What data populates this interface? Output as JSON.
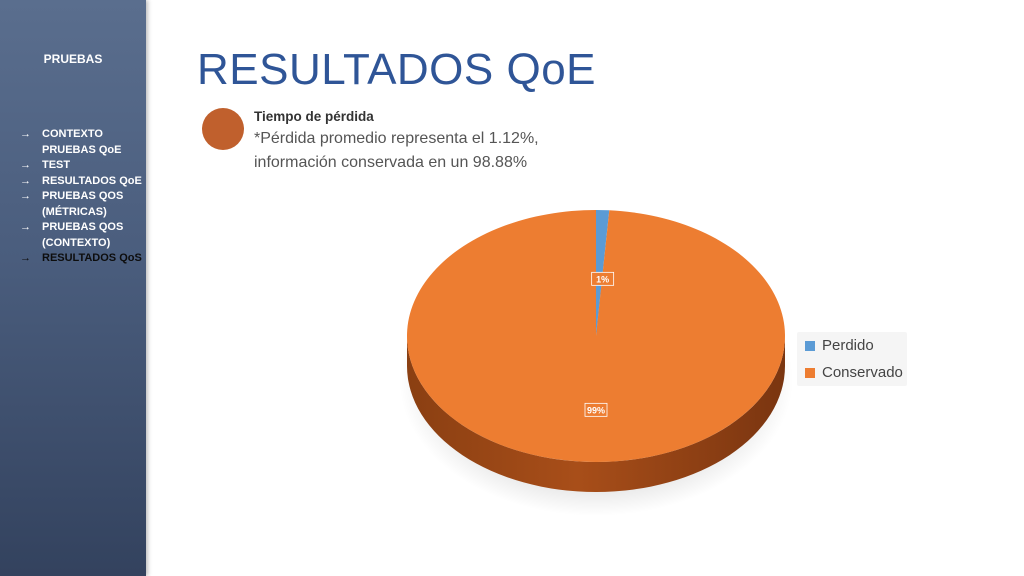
{
  "sidebar": {
    "heading": "PRUEBAS",
    "items": [
      {
        "label": "CONTEXTO PRUEBAS QoE",
        "active": false
      },
      {
        "label": "TEST",
        "active": false
      },
      {
        "label": "RESULTADOS QoE",
        "active": false
      },
      {
        "label": "PRUEBAS QOS (MÉTRICAS)",
        "active": false
      },
      {
        "label": "PRUEBAS QOS (CONTEXTO)",
        "active": false
      },
      {
        "label": "RESULTADOS QoS",
        "active": true
      }
    ],
    "arrow": "→"
  },
  "slide": {
    "title": "RESULTADOS QoE",
    "subtitle": "Tiempo de pérdida",
    "note_line1": "*Pérdida promedio representa el 1.12%,",
    "note_line2": "información conservada en un 98.88%"
  },
  "colors": {
    "perdido": "#5b9bd5",
    "conservado": "#ed7d31",
    "conservado_side": "#a84e19",
    "title": "#2f5597"
  },
  "chart_data": {
    "type": "pie",
    "categories": [
      "Perdido",
      "Conservado"
    ],
    "values": [
      1.12,
      98.88
    ],
    "data_labels": [
      "1%",
      "99%"
    ],
    "legend": "right",
    "three_d": true
  }
}
